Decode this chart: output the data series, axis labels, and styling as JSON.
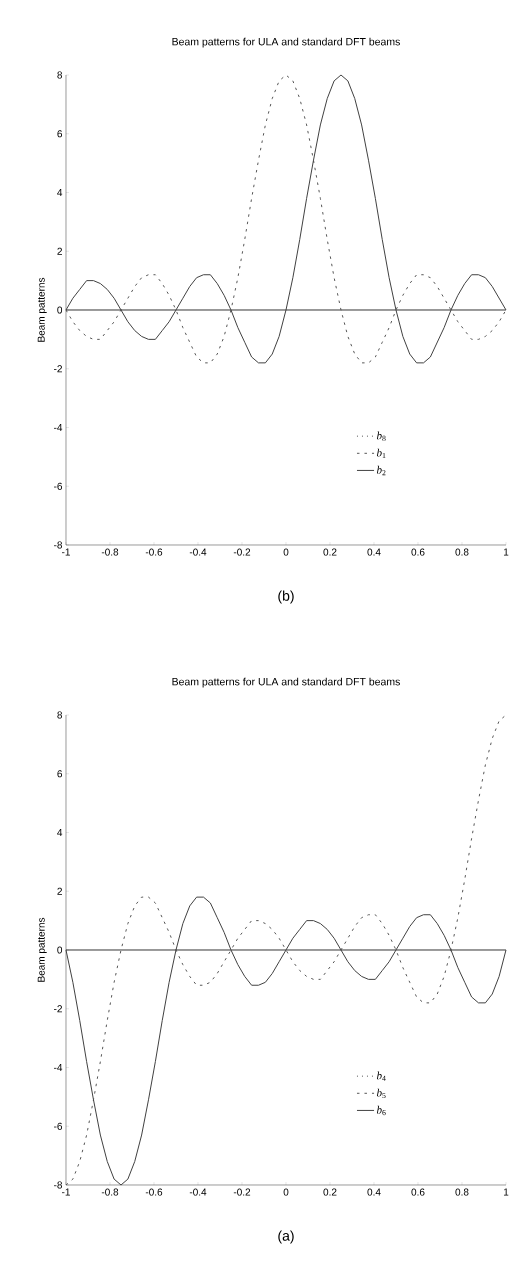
{
  "chart_data": [
    {
      "type": "line",
      "title": "Beam patterns for ULA and standard DFT beams",
      "ylabel": "Beam patterns",
      "annotations": [
        "(a)"
      ],
      "x": [
        -1,
        -0.96875,
        -0.9375,
        -0.90625,
        -0.875,
        -0.84375,
        -0.8125,
        -0.78125,
        -0.75,
        -0.71875,
        -0.6875,
        -0.65625,
        -0.625,
        -0.59375,
        -0.5625,
        -0.53125,
        -0.5,
        -0.46875,
        -0.4375,
        -0.40625,
        -0.375,
        -0.34375,
        -0.3125,
        -0.28125,
        -0.25,
        -0.21875,
        -0.1875,
        -0.15625,
        -0.125,
        -0.09375,
        -0.0625,
        -0.03125,
        0,
        0.03125,
        0.0625,
        0.09375,
        0.125,
        0.15625,
        0.1875,
        0.21875,
        0.25,
        0.28125,
        0.3125,
        0.34375,
        0.375,
        0.40625,
        0.4375,
        0.46875,
        0.5,
        0.53125,
        0.5625,
        0.59375,
        0.625,
        0.65625,
        0.6875,
        0.71875,
        0.75,
        0.78125,
        0.8125,
        0.84375,
        0.875,
        0.90625,
        0.9375,
        0.96875,
        1
      ],
      "xlim": [
        -1,
        1
      ],
      "ylim": [
        -8,
        8
      ],
      "xticks": [
        -1,
        -0.8,
        -0.6,
        -0.4,
        -0.2,
        0,
        0.2,
        0.4,
        0.6,
        0.8,
        1
      ],
      "yticks": [
        -8,
        -6,
        -4,
        -2,
        0,
        2,
        4,
        6,
        8
      ],
      "legend": "bottom right",
      "ref_lines": [
        {
          "axis": "y",
          "value": 0,
          "color": "#000000"
        }
      ],
      "series": [
        {
          "name": "*b*$_{4}$",
          "color": "#555555",
          "line_style": "dotted",
          "values": [
            null,
            null,
            null,
            null,
            null,
            null,
            null,
            null,
            null,
            null,
            null,
            null,
            null,
            null,
            null,
            null,
            null,
            null,
            null,
            null,
            null,
            null,
            null,
            null,
            null,
            null,
            null,
            null,
            null,
            null,
            null,
            null,
            null,
            null,
            null,
            null,
            null,
            null,
            null,
            null,
            null,
            null,
            null,
            null,
            null,
            null,
            null,
            null,
            null,
            null,
            null,
            null,
            null,
            null,
            null,
            null,
            null,
            null,
            null,
            null,
            null,
            null,
            null,
            null,
            null
          ]
        },
        {
          "name": "*b*$_{5}$",
          "color": "#555555",
          "line_style": "dashed",
          "values": [
            -8.0,
            -7.8,
            -7.2,
            -6.3,
            -5.1,
            -3.8,
            -2.4,
            -1.1,
            0,
            0.9,
            1.5,
            1.8,
            1.8,
            1.6,
            1.1,
            0.6,
            0,
            -0.5,
            -0.9,
            -1.2,
            -1.2,
            -1.1,
            -0.8,
            -0.4,
            0,
            0.4,
            0.7,
            1.0,
            1.0,
            0.9,
            0.7,
            0.4,
            0,
            -0.4,
            -0.7,
            -0.9,
            -1.0,
            -1.0,
            -0.7,
            -0.4,
            0,
            0.4,
            0.8,
            1.1,
            1.2,
            1.2,
            0.9,
            0.5,
            0,
            -0.6,
            -1.1,
            -1.6,
            -1.8,
            -1.8,
            -1.5,
            -0.9,
            0,
            1.1,
            2.4,
            3.8,
            5.1,
            6.3,
            7.2,
            7.8,
            8.0
          ]
        },
        {
          "name": "*b*$_{6}$",
          "color": "#404040",
          "line_style": "solid",
          "values": [
            0,
            -1.1,
            -2.4,
            -3.8,
            -5.1,
            -6.3,
            -7.2,
            -7.8,
            -8.0,
            -7.8,
            -7.2,
            -6.3,
            -5.1,
            -3.8,
            -2.4,
            -1.1,
            0,
            0.9,
            1.5,
            1.8,
            1.8,
            1.6,
            1.1,
            0.6,
            0,
            -0.5,
            -0.9,
            -1.2,
            -1.2,
            -1.1,
            -0.8,
            -0.4,
            0,
            0.4,
            0.7,
            1.0,
            1.0,
            0.9,
            0.7,
            0.4,
            0,
            -0.4,
            -0.7,
            -0.9,
            -1.0,
            -1.0,
            -0.7,
            -0.4,
            0,
            0.4,
            0.8,
            1.1,
            1.2,
            1.2,
            0.9,
            0.5,
            0,
            -0.6,
            -1.1,
            -1.6,
            -1.8,
            -1.8,
            -1.5,
            -0.9,
            0
          ]
        }
      ]
    },
    {
      "type": "line",
      "title": "Beam patterns for ULA and standard DFT beams",
      "ylabel": "Beam patterns",
      "annotations": [
        "(b)"
      ],
      "x": [
        -1,
        -0.96875,
        -0.9375,
        -0.90625,
        -0.875,
        -0.84375,
        -0.8125,
        -0.78125,
        -0.75,
        -0.71875,
        -0.6875,
        -0.65625,
        -0.625,
        -0.59375,
        -0.5625,
        -0.53125,
        -0.5,
        -0.46875,
        -0.4375,
        -0.40625,
        -0.375,
        -0.34375,
        -0.3125,
        -0.28125,
        -0.25,
        -0.21875,
        -0.1875,
        -0.15625,
        -0.125,
        -0.09375,
        -0.0625,
        -0.03125,
        0,
        0.03125,
        0.0625,
        0.09375,
        0.125,
        0.15625,
        0.1875,
        0.21875,
        0.25,
        0.28125,
        0.3125,
        0.34375,
        0.375,
        0.40625,
        0.4375,
        0.46875,
        0.5,
        0.53125,
        0.5625,
        0.59375,
        0.625,
        0.65625,
        0.6875,
        0.71875,
        0.75,
        0.78125,
        0.8125,
        0.84375,
        0.875,
        0.90625,
        0.9375,
        0.96875,
        1
      ],
      "xlim": [
        -1,
        1
      ],
      "ylim": [
        -8,
        8
      ],
      "xticks": [
        -1,
        -0.8,
        -0.6,
        -0.4,
        -0.2,
        0,
        0.2,
        0.4,
        0.6,
        0.8,
        1
      ],
      "yticks": [
        -8,
        -6,
        -4,
        -2,
        0,
        2,
        4,
        6,
        8
      ],
      "legend": "bottom right",
      "ref_lines": [
        {
          "axis": "y",
          "value": 0,
          "color": "#000000"
        }
      ],
      "series": [
        {
          "name": "*b*$_{8}$",
          "color": "#555555",
          "line_style": "dotted",
          "values": [
            null,
            null,
            null,
            null,
            null,
            null,
            null,
            null,
            null,
            null,
            null,
            null,
            null,
            null,
            null,
            null,
            null,
            null,
            null,
            null,
            null,
            null,
            null,
            null,
            null,
            null,
            null,
            null,
            null,
            null,
            null,
            null,
            null,
            null,
            null,
            null,
            null,
            null,
            null,
            null,
            null,
            null,
            null,
            null,
            null,
            null,
            null,
            null,
            null,
            null,
            null,
            null,
            null,
            null,
            null,
            null,
            null,
            null,
            null,
            null,
            null,
            null,
            null,
            null,
            null
          ]
        },
        {
          "name": "*b*$_{1}$",
          "color": "#555555",
          "line_style": "dashed",
          "values": [
            0,
            -0.4,
            -0.7,
            -0.9,
            -1.0,
            -1.0,
            -0.7,
            -0.4,
            0,
            0.4,
            0.8,
            1.1,
            1.2,
            1.2,
            0.9,
            0.5,
            0,
            -0.6,
            -1.1,
            -1.6,
            -1.8,
            -1.8,
            -1.5,
            -0.9,
            0,
            1.1,
            2.4,
            3.8,
            5.1,
            6.3,
            7.2,
            7.8,
            8.0,
            7.8,
            7.2,
            6.3,
            5.1,
            3.8,
            2.4,
            1.1,
            0,
            -0.9,
            -1.5,
            -1.8,
            -1.8,
            -1.6,
            -1.1,
            -0.6,
            0,
            0.5,
            0.9,
            1.2,
            1.2,
            1.1,
            0.8,
            0.4,
            0,
            -0.4,
            -0.7,
            -1.0,
            -1.0,
            -0.9,
            -0.7,
            -0.4,
            0
          ]
        },
        {
          "name": "*b*$_{2}$",
          "color": "#404040",
          "line_style": "solid",
          "values": [
            0,
            0.4,
            0.7,
            1.0,
            1.0,
            0.9,
            0.7,
            0.4,
            0,
            -0.4,
            -0.7,
            -0.9,
            -1.0,
            -1.0,
            -0.7,
            -0.4,
            0,
            0.4,
            0.8,
            1.1,
            1.2,
            1.2,
            0.9,
            0.5,
            0,
            -0.6,
            -1.1,
            -1.6,
            -1.8,
            -1.8,
            -1.5,
            -0.9,
            0,
            1.1,
            2.4,
            3.8,
            5.1,
            6.3,
            7.2,
            7.8,
            8.0,
            7.8,
            7.2,
            6.3,
            5.1,
            3.8,
            2.4,
            1.1,
            0,
            -0.9,
            -1.5,
            -1.8,
            -1.8,
            -1.6,
            -1.1,
            -0.6,
            0,
            0.5,
            0.9,
            1.2,
            1.2,
            1.1,
            0.8,
            0.4,
            0
          ]
        }
      ]
    }
  ]
}
